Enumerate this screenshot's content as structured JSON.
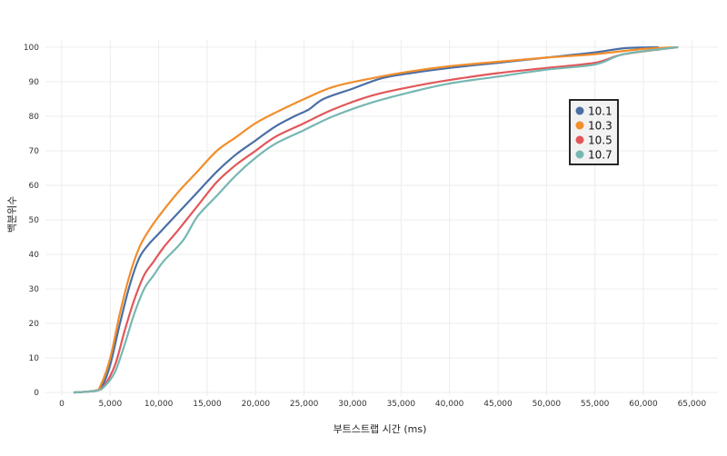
{
  "chart_data": {
    "type": "line",
    "title": "",
    "xlabel": "부트스트랩 시간 (ms)",
    "ylabel": "백분위수",
    "xlim": [
      0,
      66000
    ],
    "ylim": [
      0,
      100
    ],
    "x_ticks": [
      0,
      5000,
      10000,
      15000,
      20000,
      25000,
      30000,
      35000,
      40000,
      45000,
      50000,
      55000,
      60000,
      65000
    ],
    "x_tick_labels": [
      "0",
      "5,000",
      "10,000",
      "15,000",
      "20,000",
      "25,000",
      "30,000",
      "35,000",
      "40,000",
      "45,000",
      "50,000",
      "55,000",
      "60,000",
      "65,000"
    ],
    "y_ticks": [
      0,
      10,
      20,
      30,
      40,
      50,
      60,
      70,
      80,
      90,
      100
    ],
    "y_tick_labels": [
      "0",
      "10",
      "20",
      "30",
      "40",
      "50",
      "60",
      "70",
      "80",
      "90",
      "100"
    ],
    "grid": true,
    "legend_position": "right",
    "series": [
      {
        "name": "10.1",
        "color": "#4a6fa5",
        "points": [
          [
            1300,
            0
          ],
          [
            3500,
            0.5
          ],
          [
            4200,
            2
          ],
          [
            5000,
            8
          ],
          [
            6000,
            20
          ],
          [
            7000,
            31
          ],
          [
            8000,
            39
          ],
          [
            9000,
            43
          ],
          [
            10000,
            46
          ],
          [
            12000,
            52
          ],
          [
            14000,
            58
          ],
          [
            16000,
            64
          ],
          [
            18000,
            69
          ],
          [
            20000,
            73
          ],
          [
            22000,
            77
          ],
          [
            24000,
            80
          ],
          [
            25500,
            82
          ],
          [
            27000,
            85
          ],
          [
            30000,
            88
          ],
          [
            33000,
            91
          ],
          [
            36000,
            92.5
          ],
          [
            40000,
            94
          ],
          [
            45000,
            95.5
          ],
          [
            50000,
            97
          ],
          [
            55000,
            98.5
          ],
          [
            58000,
            99.7
          ],
          [
            61500,
            100
          ]
        ]
      },
      {
        "name": "10.3",
        "color": "#f28e2b",
        "points": [
          [
            1300,
            0
          ],
          [
            3400,
            0.5
          ],
          [
            4000,
            2
          ],
          [
            5000,
            10
          ],
          [
            6000,
            23
          ],
          [
            7000,
            34
          ],
          [
            8000,
            42
          ],
          [
            9000,
            47
          ],
          [
            10000,
            51
          ],
          [
            12000,
            58
          ],
          [
            14000,
            64
          ],
          [
            16000,
            70
          ],
          [
            18000,
            74
          ],
          [
            20000,
            78
          ],
          [
            22000,
            81
          ],
          [
            25000,
            85
          ],
          [
            28000,
            88.5
          ],
          [
            32000,
            91
          ],
          [
            36000,
            93
          ],
          [
            40000,
            94.5
          ],
          [
            45000,
            95.8
          ],
          [
            50000,
            97
          ],
          [
            55000,
            98
          ],
          [
            60000,
            99.5
          ],
          [
            63500,
            100
          ]
        ]
      },
      {
        "name": "10.5",
        "color": "#e15759",
        "points": [
          [
            1300,
            0
          ],
          [
            3600,
            0.5
          ],
          [
            4400,
            2
          ],
          [
            5500,
            8
          ],
          [
            6500,
            18
          ],
          [
            7500,
            27
          ],
          [
            8500,
            34
          ],
          [
            9500,
            38
          ],
          [
            10500,
            42
          ],
          [
            12000,
            47
          ],
          [
            14000,
            54
          ],
          [
            16000,
            61
          ],
          [
            18000,
            66
          ],
          [
            20000,
            70
          ],
          [
            22000,
            74
          ],
          [
            25000,
            78
          ],
          [
            28000,
            82
          ],
          [
            32000,
            86
          ],
          [
            36000,
            88.5
          ],
          [
            40000,
            90.5
          ],
          [
            45000,
            92.5
          ],
          [
            50000,
            94
          ],
          [
            55000,
            95.5
          ],
          [
            58000,
            98
          ],
          [
            63500,
            100
          ]
        ]
      },
      {
        "name": "10.7",
        "color": "#76b7b2",
        "points": [
          [
            1300,
            0
          ],
          [
            3600,
            0.5
          ],
          [
            4500,
            2
          ],
          [
            5500,
            6
          ],
          [
            6500,
            14
          ],
          [
            7500,
            23
          ],
          [
            8500,
            30
          ],
          [
            9500,
            34
          ],
          [
            10500,
            38
          ],
          [
            12500,
            44
          ],
          [
            14000,
            51
          ],
          [
            16000,
            57
          ],
          [
            18000,
            63
          ],
          [
            20000,
            68
          ],
          [
            22000,
            72
          ],
          [
            25000,
            76
          ],
          [
            28000,
            80
          ],
          [
            32000,
            84
          ],
          [
            36000,
            87
          ],
          [
            40000,
            89.5
          ],
          [
            45000,
            91.5
          ],
          [
            50000,
            93.5
          ],
          [
            55000,
            95
          ],
          [
            58000,
            98
          ],
          [
            63500,
            100
          ]
        ]
      }
    ]
  }
}
